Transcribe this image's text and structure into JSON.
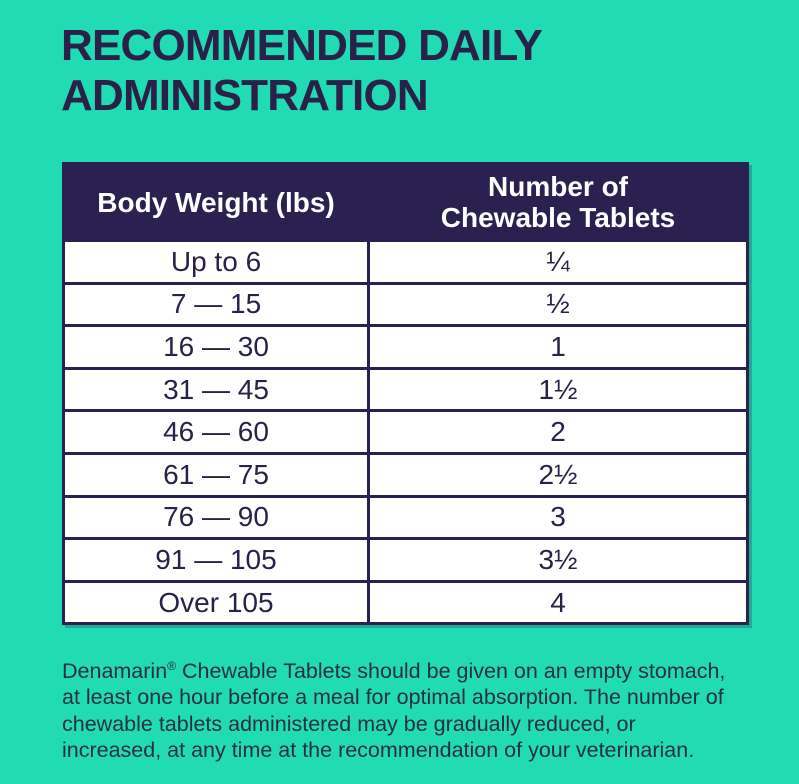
{
  "colors": {
    "background": "#20dbb3",
    "ink": "#2b2150",
    "header_background": "#2b2150",
    "header_text": "#ffffff",
    "table_background": "#ffffff"
  },
  "title": {
    "line1": "RECOMMENDED DAILY",
    "line2": "ADMINISTRATION"
  },
  "table": {
    "header": {
      "col1": "Body Weight (lbs)",
      "col2_line1": "Number of",
      "col2_line2": "Chewable Tablets"
    },
    "rows": [
      {
        "weight": "Up to 6",
        "tablets": "¼"
      },
      {
        "weight": "7 — 15",
        "tablets": "½"
      },
      {
        "weight": "16 — 30",
        "tablets": "1"
      },
      {
        "weight": "31 — 45",
        "tablets": "1½"
      },
      {
        "weight": "46 — 60",
        "tablets": "2"
      },
      {
        "weight": "61 — 75",
        "tablets": "2½"
      },
      {
        "weight": "76 — 90",
        "tablets": "3"
      },
      {
        "weight": "91 — 105",
        "tablets": "3½"
      },
      {
        "weight": "Over 105",
        "tablets": "4"
      }
    ]
  },
  "footnote": {
    "brand": "Denamarin",
    "reg": "®",
    "line1_rest": " Chewable Tablets should be given on an empty stomach,",
    "line2": "at least one hour before a meal for optimal absorption. The number of",
    "line3": "chewable tablets administered may be gradually reduced, or",
    "line4": "increased, at any time at the recommendation of your veterinarian."
  },
  "chart_data": {
    "type": "table",
    "title": "RECOMMENDED DAILY ADMINISTRATION",
    "columns": [
      "Body Weight (lbs)",
      "Number of Chewable Tablets"
    ],
    "rows": [
      [
        "Up to 6",
        "¼"
      ],
      [
        "7 — 15",
        "½"
      ],
      [
        "16 — 30",
        "1"
      ],
      [
        "31 — 45",
        "1½"
      ],
      [
        "46 — 60",
        "2"
      ],
      [
        "61 — 75",
        "2½"
      ],
      [
        "76 — 90",
        "3"
      ],
      [
        "91 — 105",
        "3½"
      ],
      [
        "Over 105",
        "4"
      ]
    ],
    "note": "Denamarin® Chewable Tablets should be given on an empty stomach, at least one hour before a meal for optimal absorption. The number of chewable tablets administered may be gradually reduced, or increased, at any time at the recommendation of your veterinarian."
  }
}
